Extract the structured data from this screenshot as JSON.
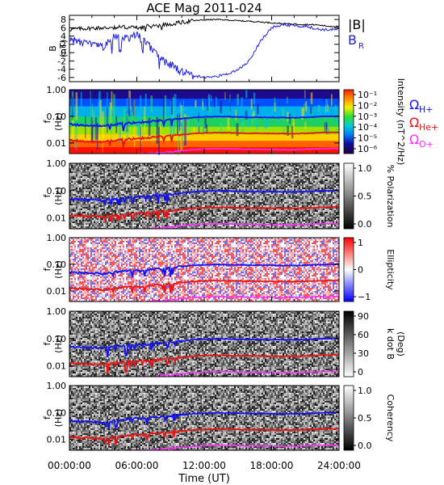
{
  "title": "ACE Mag 2011-024",
  "colors": {
    "total_field": "#000000",
    "radial_field": "#1f1fe0",
    "oh": "#1010ff",
    "ohe": "#ee1010",
    "oo": "#ff30ff"
  },
  "chart_data": [
    {
      "type": "line",
      "panel": "magnetic-field",
      "ylabel_top": "B",
      "ylabel_unit": "(nT)",
      "ylim": [
        -7,
        9
      ],
      "yticks": [
        -6,
        -4,
        -2,
        0,
        2,
        4,
        6,
        8
      ],
      "ytick_labels": [
        "-6",
        "-4",
        "-2",
        "0",
        "2",
        "4",
        "6",
        "8"
      ],
      "legend": [
        "|B|",
        "B",
        "R"
      ],
      "series": [
        {
          "name": "|B|",
          "color_key": "total_field",
          "points": [
            [
              0,
              5.6
            ],
            [
              1,
              5.8
            ],
            [
              2,
              5.9
            ],
            [
              3,
              6.0
            ],
            [
              4,
              6.1
            ],
            [
              5,
              6.2
            ],
            [
              6,
              6.0
            ],
            [
              7,
              6.3
            ],
            [
              8,
              6.6
            ],
            [
              9,
              6.9
            ],
            [
              10,
              7.3
            ],
            [
              11,
              7.7
            ],
            [
              12,
              7.9
            ],
            [
              13,
              8.0
            ],
            [
              14,
              7.9
            ],
            [
              15,
              7.7
            ],
            [
              16,
              7.6
            ],
            [
              17,
              7.4
            ],
            [
              18,
              7.2
            ],
            [
              19,
              7.0
            ],
            [
              20,
              6.9
            ],
            [
              21,
              6.8
            ],
            [
              22,
              6.7
            ],
            [
              23,
              6.4
            ],
            [
              24,
              6.3
            ]
          ]
        },
        {
          "name": "B",
          "subscript": "R",
          "color_key": "radial_field",
          "points": [
            [
              0,
              3.3
            ],
            [
              1,
              2.4
            ],
            [
              2,
              2.0
            ],
            [
              3,
              1.3
            ],
            [
              4,
              3.8
            ],
            [
              5,
              3.4
            ],
            [
              6,
              4.2
            ],
            [
              7,
              2.1
            ],
            [
              8,
              -1.5
            ],
            [
              9,
              -3.0
            ],
            [
              10,
              -4.6
            ],
            [
              11,
              -5.6
            ],
            [
              12,
              -5.9
            ],
            [
              13,
              -5.8
            ],
            [
              14,
              -5.2
            ],
            [
              15,
              -4.2
            ],
            [
              16,
              -2.0
            ],
            [
              17,
              2.8
            ],
            [
              18,
              6.0
            ],
            [
              19,
              6.7
            ],
            [
              20,
              6.4
            ],
            [
              21,
              6.5
            ],
            [
              22,
              5.7
            ],
            [
              23,
              5.5
            ],
            [
              24,
              5.6
            ]
          ]
        }
      ]
    },
    {
      "type": "heatmap",
      "panel": "intensity",
      "ylabel_top": "f",
      "ylabel_unit": "(Hz)",
      "yticks": [
        1.0,
        0.1,
        0.01
      ],
      "ytick_labels": [
        "1.00",
        "0.10",
        "0.01"
      ],
      "colorbar_label": "Intensity (nT^2/Hz)",
      "colorbar_ticks": [
        "10⁻¹",
        "10⁻²",
        "10⁻³",
        "10⁻⁴",
        "10⁻⁵",
        "10⁻⁶"
      ],
      "gyro_labels": [
        "Ω",
        "H+",
        "Ω",
        "He+",
        "Ω",
        "O+"
      ]
    },
    {
      "type": "heatmap",
      "panel": "polarization",
      "ylabel_top": "f",
      "ylabel_unit": "(Hz)",
      "yticks": [
        1.0,
        0.1,
        0.01
      ],
      "ytick_labels": [
        "1.00",
        "0.10",
        "0.01"
      ],
      "colorbar_label": "% Polarization",
      "colorbar_ticks": [
        "1.0",
        "0.5",
        "0.0"
      ]
    },
    {
      "type": "heatmap",
      "panel": "ellipticity",
      "ylabel_top": "f",
      "ylabel_unit": "(Hz)",
      "yticks": [
        1.0,
        0.1,
        0.01
      ],
      "ytick_labels": [
        "1.00",
        "0.10",
        "0.01"
      ],
      "colorbar_label": "Ellipticity",
      "colorbar_ticks": [
        "1",
        "0",
        "−1"
      ]
    },
    {
      "type": "heatmap",
      "panel": "wave-normal",
      "ylabel_top": "f",
      "ylabel_unit": "(Hz)",
      "yticks": [
        1.0,
        0.1,
        0.01
      ],
      "ytick_labels": [
        "1.00",
        "0.10",
        "0.01"
      ],
      "colorbar_label": "k dot B",
      "colorbar_unit": "(Deg)",
      "colorbar_ticks": [
        "90",
        "60",
        "30",
        "0"
      ]
    },
    {
      "type": "heatmap",
      "panel": "coherency",
      "ylabel_top": "f",
      "ylabel_unit": "(Hz)",
      "yticks": [
        1.0,
        0.1,
        0.01
      ],
      "ytick_labels": [
        "1.00",
        "0.10",
        "0.01"
      ],
      "colorbar_label": "Coherency",
      "colorbar_ticks": [
        "1.0",
        "0.5",
        "0.0"
      ]
    }
  ],
  "gyrofrequency_curves": {
    "oh": [
      [
        0,
        0.05
      ],
      [
        1,
        0.048
      ],
      [
        2,
        0.046
      ],
      [
        3,
        0.044
      ],
      [
        4,
        0.05
      ],
      [
        5,
        0.055
      ],
      [
        6,
        0.06
      ],
      [
        7,
        0.062
      ],
      [
        8,
        0.068
      ],
      [
        9,
        0.074
      ],
      [
        10,
        0.082
      ],
      [
        11,
        0.09
      ],
      [
        12,
        0.095
      ],
      [
        13,
        0.098
      ],
      [
        14,
        0.097
      ],
      [
        15,
        0.094
      ],
      [
        16,
        0.092
      ],
      [
        17,
        0.092
      ],
      [
        18,
        0.091
      ],
      [
        19,
        0.09
      ],
      [
        20,
        0.089
      ],
      [
        21,
        0.092
      ],
      [
        22,
        0.096
      ],
      [
        23,
        0.1
      ],
      [
        24,
        0.1
      ]
    ],
    "ohe": [
      [
        0,
        0.0125
      ],
      [
        1,
        0.012
      ],
      [
        2,
        0.0115
      ],
      [
        3,
        0.011
      ],
      [
        4,
        0.0125
      ],
      [
        5,
        0.0138
      ],
      [
        6,
        0.015
      ],
      [
        7,
        0.0155
      ],
      [
        8,
        0.017
      ],
      [
        9,
        0.0185
      ],
      [
        10,
        0.0205
      ],
      [
        11,
        0.0225
      ],
      [
        12,
        0.0238
      ],
      [
        13,
        0.0245
      ],
      [
        14,
        0.0243
      ],
      [
        15,
        0.0235
      ],
      [
        16,
        0.023
      ],
      [
        17,
        0.023
      ],
      [
        18,
        0.0228
      ],
      [
        19,
        0.0225
      ],
      [
        20,
        0.0223
      ],
      [
        21,
        0.023
      ],
      [
        22,
        0.024
      ],
      [
        23,
        0.025
      ],
      [
        24,
        0.025
      ]
    ],
    "oo": [
      [
        0,
        0.0031
      ],
      [
        1,
        0.003
      ],
      [
        2,
        0.0029
      ],
      [
        3,
        0.0028
      ],
      [
        4,
        0.0031
      ],
      [
        5,
        0.0034
      ],
      [
        6,
        0.0038
      ],
      [
        7,
        0.0039
      ],
      [
        8,
        0.0043
      ],
      [
        9,
        0.0046
      ],
      [
        10,
        0.0051
      ],
      [
        11,
        0.0056
      ],
      [
        12,
        0.0059
      ],
      [
        13,
        0.0061
      ],
      [
        14,
        0.0061
      ],
      [
        15,
        0.0059
      ],
      [
        16,
        0.0058
      ],
      [
        17,
        0.0058
      ],
      [
        18,
        0.0057
      ],
      [
        19,
        0.0056
      ],
      [
        20,
        0.0056
      ],
      [
        21,
        0.0058
      ],
      [
        22,
        0.006
      ],
      [
        23,
        0.0062
      ],
      [
        24,
        0.0062
      ]
    ]
  },
  "time_axis": {
    "label": "Time (UT)",
    "xlim": [
      0,
      24
    ],
    "ticks": [
      0,
      6,
      12,
      18,
      24
    ],
    "tick_labels": [
      "00:00:00",
      "06:00:00",
      "12:00:00",
      "18:00:00",
      "24:00:00"
    ]
  }
}
